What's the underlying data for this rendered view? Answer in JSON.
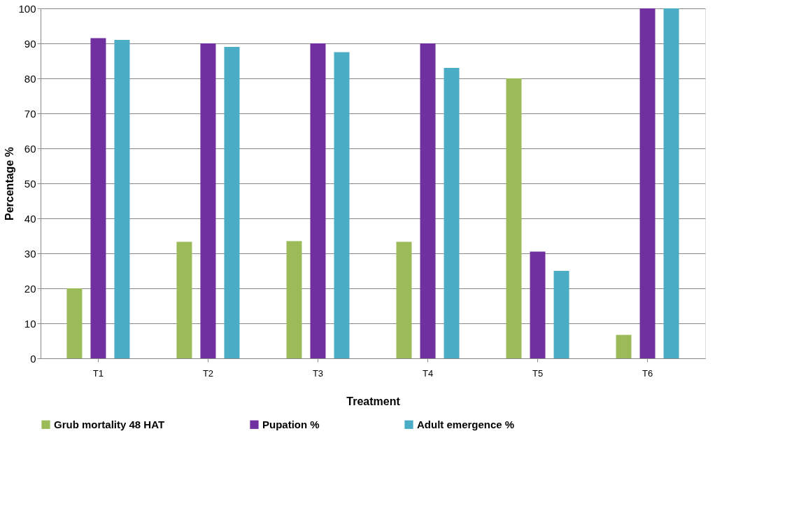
{
  "chart_data": {
    "type": "bar",
    "xlabel": "Treatment",
    "ylabel": "Percentage %",
    "categories": [
      "T1",
      "T2",
      "T3",
      "T4",
      "T5",
      "T6"
    ],
    "series": [
      {
        "name": "Grub mortality 48 HAT",
        "color": "#9bbb59",
        "values": [
          20,
          33.3,
          33.5,
          33.3,
          80,
          6.7
        ]
      },
      {
        "name": "Pupation %",
        "color": "#7030a0",
        "values": [
          91.5,
          90,
          90,
          90,
          30.5,
          100
        ]
      },
      {
        "name": "Adult emergence %",
        "color": "#4bacc6",
        "values": [
          91,
          89,
          87.5,
          83,
          25,
          100
        ]
      }
    ],
    "ylim": [
      0,
      100
    ],
    "yticks": [
      0,
      10,
      20,
      30,
      40,
      50,
      60,
      70,
      80,
      90,
      100
    ],
    "grid": "y",
    "legend": "bottom"
  }
}
